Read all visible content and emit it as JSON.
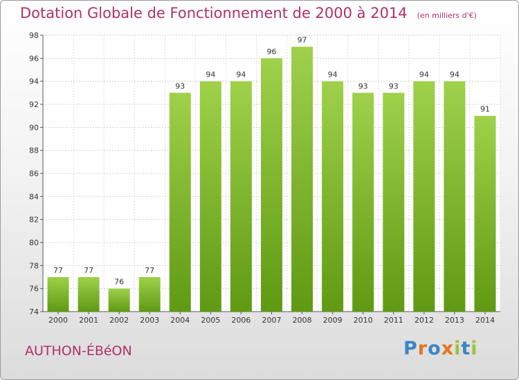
{
  "title": "Dotation Globale de Fonctionnement de 2000 à 2014",
  "subtitle": "(en milliers d'€)",
  "commune": "AUTHON-ÉBéON",
  "logo": {
    "text": "Proxiti",
    "letter_colors": [
      "#3a86c8",
      "#e8731c",
      "#3a86c8",
      "#e8731c",
      "#9bc43a",
      "#3a86c8",
      "#9bc43a"
    ]
  },
  "colors": {
    "bar_light": "#9fd14a",
    "bar_dark": "#5f9a12",
    "title": "#b0306a"
  },
  "chart_data": {
    "type": "bar",
    "title": "Dotation Globale de Fonctionnement de 2000 à 2014",
    "subtitle": "(en milliers d'€)",
    "xlabel": "",
    "ylabel": "",
    "categories": [
      "2000",
      "2001",
      "2002",
      "2003",
      "2004",
      "2005",
      "2006",
      "2007",
      "2008",
      "2009",
      "2010",
      "2011",
      "2012",
      "2013",
      "2014"
    ],
    "values": [
      77,
      77,
      76,
      77,
      93,
      94,
      94,
      96,
      97,
      94,
      93,
      93,
      94,
      94,
      91
    ],
    "ylim": [
      74,
      98
    ],
    "yticks": [
      74,
      76,
      78,
      80,
      82,
      84,
      86,
      88,
      90,
      92,
      94,
      96,
      98
    ],
    "grid": true,
    "legend": "none"
  }
}
